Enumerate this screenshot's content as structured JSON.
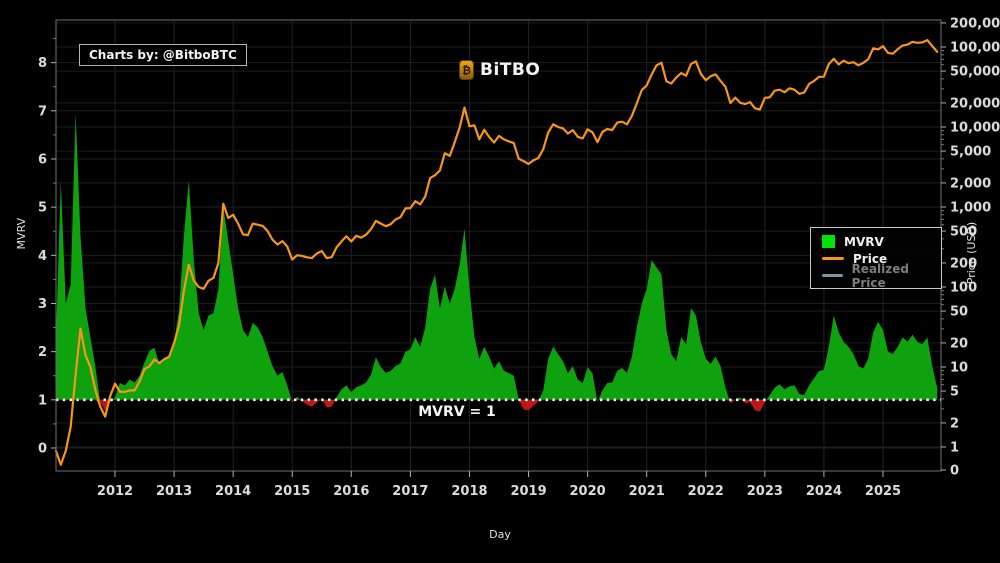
{
  "branding": {
    "charts_by": "Charts by: @BitboBTC",
    "logo": {
      "text": "BiTBO",
      "symbol": "₿",
      "color": "#d78b12"
    }
  },
  "annotation": {
    "mvrv_line_label": "MVRV = 1"
  },
  "legend": {
    "items": [
      {
        "label": "MVRV",
        "swatch": "square",
        "color": "#00e405",
        "dimmed": false
      },
      {
        "label": "Price",
        "swatch": "line",
        "color": "#f7961d",
        "dimmed": false
      },
      {
        "label": "Realized Price",
        "swatch": "line",
        "color": "#8293a4",
        "dimmed": true
      }
    ]
  },
  "chart_data": {
    "type": "area+line",
    "title": "",
    "xlabel": "Day",
    "ylabel_left": "MVRV",
    "ylabel_right": "Price (USD)",
    "grid": true,
    "legend_position": "right-middle",
    "x_unit": "decimal_year",
    "x_start": 2011.0,
    "x_step": 0.0833333,
    "x_ticks": [
      2012,
      2013,
      2014,
      2015,
      2016,
      2017,
      2018,
      2019,
      2020,
      2021,
      2022,
      2023,
      2024,
      2025
    ],
    "left_axis": {
      "scale": "linear",
      "range": [
        -0.5,
        8.9
      ],
      "ticks": [
        0,
        1,
        2,
        3,
        4,
        5,
        6,
        7,
        8
      ]
    },
    "right_axis": {
      "scale": "log",
      "tick_values": [
        200000,
        100000,
        50000,
        20000,
        10000,
        5000,
        2000,
        1000,
        500,
        200,
        100,
        50,
        20,
        10,
        5,
        2,
        1,
        0
      ],
      "tick_labels": [
        "200,000",
        "100,000",
        "50,000",
        "20,000",
        "10,000",
        "5,000",
        "2,000",
        "1,000",
        "500",
        "200",
        "100",
        "50",
        "20",
        "10",
        "5",
        "2",
        "1",
        "0"
      ]
    },
    "baseline": 1,
    "colors": {
      "area_above": "#0ea20e",
      "area_below": "#c11616",
      "price_line": "#f7961d",
      "baseline_dots": "#ffffff"
    },
    "series": [
      {
        "name": "MVRV",
        "type": "area",
        "axis": "left",
        "values": [
          2.2,
          5.55,
          3.0,
          3.4,
          6.95,
          4.4,
          2.9,
          2.3,
          1.7,
          0.95,
          0.78,
          0.95,
          1.05,
          1.35,
          1.3,
          1.42,
          1.36,
          1.5,
          1.78,
          2.02,
          2.08,
          1.75,
          1.82,
          1.92,
          2.2,
          2.85,
          4.4,
          5.55,
          3.9,
          2.8,
          2.45,
          2.75,
          2.8,
          3.3,
          5.0,
          4.3,
          3.6,
          2.9,
          2.45,
          2.3,
          2.6,
          2.5,
          2.3,
          2.0,
          1.7,
          1.5,
          1.58,
          1.3,
          0.95,
          1.06,
          0.97,
          0.9,
          0.86,
          0.95,
          1.02,
          0.84,
          0.86,
          1.05,
          1.22,
          1.3,
          1.16,
          1.26,
          1.3,
          1.36,
          1.52,
          1.88,
          1.68,
          1.56,
          1.6,
          1.7,
          1.76,
          2.0,
          2.05,
          2.3,
          2.1,
          2.5,
          3.3,
          3.6,
          2.9,
          3.35,
          3.0,
          3.3,
          3.8,
          4.55,
          3.3,
          2.3,
          1.85,
          2.1,
          1.9,
          1.65,
          1.8,
          1.6,
          1.55,
          1.5,
          1.0,
          0.8,
          0.78,
          0.88,
          0.97,
          1.2,
          1.85,
          2.1,
          1.95,
          1.8,
          1.55,
          1.7,
          1.42,
          1.35,
          1.68,
          1.55,
          0.95,
          1.2,
          1.35,
          1.36,
          1.6,
          1.66,
          1.56,
          1.9,
          2.5,
          3.0,
          3.3,
          3.9,
          3.75,
          3.6,
          2.45,
          1.95,
          1.8,
          2.3,
          2.15,
          2.9,
          2.75,
          2.2,
          1.85,
          1.75,
          1.9,
          1.7,
          1.25,
          0.93,
          1.0,
          1.05,
          0.93,
          0.95,
          0.78,
          0.76,
          0.95,
          1.1,
          1.25,
          1.32,
          1.22,
          1.28,
          1.3,
          1.12,
          1.1,
          1.3,
          1.45,
          1.6,
          1.62,
          2.1,
          2.75,
          2.4,
          2.2,
          2.1,
          1.95,
          1.7,
          1.65,
          1.85,
          2.4,
          2.62,
          2.45,
          2.0,
          1.95,
          2.1,
          2.3,
          2.2,
          2.35,
          2.2,
          2.15,
          2.3,
          1.7,
          1.25
        ]
      },
      {
        "name": "Price",
        "type": "line",
        "axis": "right",
        "values": [
          0.9,
          0.6,
          0.9,
          1.8,
          8,
          30,
          14,
          10,
          5.2,
          3.2,
          2.4,
          4.3,
          6.2,
          4.9,
          4.9,
          5.1,
          5.1,
          6.6,
          9.4,
          10.2,
          12.4,
          11.2,
          12.5,
          13.5,
          20,
          33,
          90,
          190,
          120,
          100,
          95,
          120,
          130,
          200,
          1100,
          730,
          800,
          620,
          455,
          445,
          620,
          600,
          580,
          500,
          390,
          340,
          375,
          320,
          220,
          250,
          245,
          235,
          230,
          262,
          282,
          230,
          236,
          312,
          372,
          430,
          370,
          437,
          415,
          450,
          530,
          670,
          620,
          575,
          610,
          700,
          745,
          960,
          970,
          1180,
          1080,
          1350,
          2300,
          2500,
          2870,
          4700,
          4350,
          6450,
          9800,
          17500,
          10200,
          10500,
          7000,
          9250,
          7500,
          6400,
          7750,
          7000,
          6600,
          6300,
          4000,
          3750,
          3450,
          3850,
          4100,
          5300,
          8550,
          10800,
          10000,
          9600,
          8300,
          9150,
          7550,
          7200,
          9350,
          8550,
          6450,
          8650,
          9450,
          9150,
          11350,
          11650,
          10800,
          13800,
          19700,
          29000,
          33100,
          45200,
          58800,
          63500,
          37300,
          35000,
          41500,
          47150,
          43800,
          61300,
          66000,
          46200,
          38500,
          43200,
          45500,
          37650,
          31800,
          19900,
          23300,
          20050,
          19400,
          20500,
          17150,
          16550,
          23100,
          23500,
          28450,
          29250,
          27200,
          30450,
          29250,
          26000,
          26950,
          34650,
          37700,
          42250,
          42550,
          61150,
          71300,
          60650,
          67500,
          62750,
          64600,
          59000,
          63300,
          70200,
          96400,
          93400,
          102400,
          84350,
          82550,
          94200,
          104600,
          107100,
          115750,
          113000,
          114050,
          122000,
          103000,
          87000
        ]
      },
      {
        "name": "Realized Price",
        "type": "line",
        "axis": "right",
        "visible": false,
        "values": []
      }
    ]
  }
}
